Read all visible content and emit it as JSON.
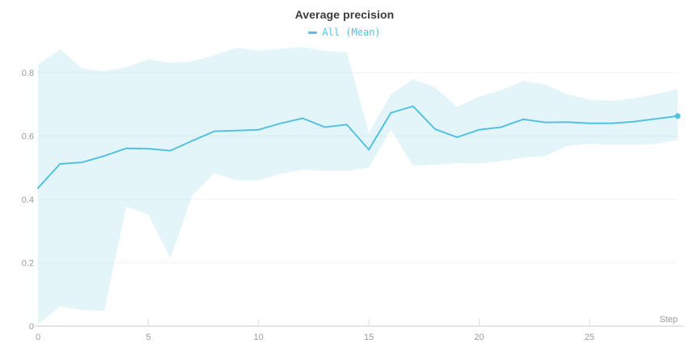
{
  "chart_data": {
    "type": "line",
    "title": "Average precision",
    "xlabel": "Step",
    "ylabel": "",
    "xlim": [
      0,
      29
    ],
    "ylim": [
      0,
      0.89
    ],
    "x_ticks": [
      0,
      5,
      10,
      15,
      20,
      25
    ],
    "y_ticks": [
      0,
      0.2,
      0.4,
      0.6,
      0.8
    ],
    "grid": true,
    "legend_position": "top-center",
    "series": [
      {
        "name": "All (Mean)",
        "color": "#54c2de",
        "x": [
          0,
          1,
          2,
          3,
          4,
          5,
          6,
          7,
          8,
          9,
          10,
          11,
          12,
          13,
          14,
          15,
          16,
          17,
          18,
          19,
          20,
          21,
          22,
          23,
          24,
          25,
          26,
          27,
          28,
          29
        ],
        "values": [
          0.436,
          0.512,
          0.517,
          0.537,
          0.561,
          0.56,
          0.554,
          0.585,
          0.615,
          0.617,
          0.62,
          0.64,
          0.656,
          0.628,
          0.636,
          0.557,
          0.673,
          0.694,
          0.622,
          0.596,
          0.62,
          0.628,
          0.653,
          0.643,
          0.644,
          0.64,
          0.64,
          0.645,
          0.654,
          0.663
        ],
        "band_upper": [
          0.825,
          0.874,
          0.813,
          0.804,
          0.817,
          0.842,
          0.831,
          0.836,
          0.855,
          0.879,
          0.869,
          0.876,
          0.881,
          0.868,
          0.864,
          0.61,
          0.732,
          0.779,
          0.753,
          0.692,
          0.724,
          0.745,
          0.774,
          0.762,
          0.732,
          0.715,
          0.711,
          0.719,
          0.732,
          0.749
        ],
        "band_lower": [
          0.005,
          0.063,
          0.051,
          0.048,
          0.377,
          0.352,
          0.214,
          0.414,
          0.482,
          0.46,
          0.46,
          0.481,
          0.494,
          0.49,
          0.49,
          0.5,
          0.62,
          0.507,
          0.509,
          0.515,
          0.513,
          0.52,
          0.532,
          0.537,
          0.569,
          0.575,
          0.572,
          0.572,
          0.575,
          0.588
        ],
        "endpoint_marker": true
      }
    ]
  },
  "colors": {
    "accent": "#54c2de",
    "band_fill": "#e3f5f9",
    "title_text": "#3b3b3b",
    "tick_text": "#9b9b9b",
    "gridline": "#f2f2f2",
    "axis_line": "#e4e4e4"
  }
}
